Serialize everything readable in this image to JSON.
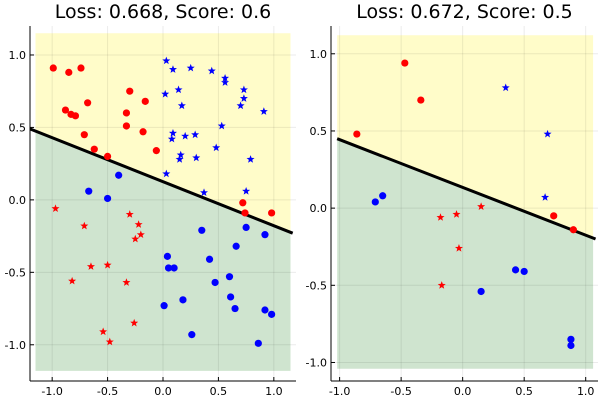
{
  "colors": {
    "region_top": "#fffcc9",
    "region_bottom": "#cfe4cf",
    "series_a": "#ff0000",
    "series_b": "#0000ff",
    "boundary": "#000000"
  },
  "chart_data": [
    {
      "type": "scatter",
      "title": "Loss: 0.668, Score: 0.6",
      "xlim": [
        -1.2,
        1.2
      ],
      "ylim": [
        -1.25,
        1.2
      ],
      "xticks": [
        -1.0,
        -0.5,
        0.0,
        0.5,
        1.0
      ],
      "xtick_labels": [
        "-1.0",
        "-0.5",
        "0.0",
        "0.5",
        "1.0"
      ],
      "yticks": [
        -1.0,
        -0.5,
        0.0,
        0.5,
        1.0
      ],
      "ytick_labels": [
        "-1.0",
        "-0.5",
        "0.0",
        "0.5",
        "1.0"
      ],
      "grid": true,
      "legend": "none",
      "regions": {
        "xrange": [
          -1.15,
          1.15
        ],
        "yrange": [
          -1.18,
          1.15
        ]
      },
      "boundary": {
        "x": [
          -1.2,
          1.17
        ],
        "y": [
          0.49,
          -0.23
        ]
      },
      "series": [
        {
          "marker": "circle",
          "color": "#ff0000",
          "points": [
            [
              -0.99,
              0.91
            ],
            [
              -0.85,
              0.88
            ],
            [
              -0.74,
              0.91
            ],
            [
              -0.88,
              0.62
            ],
            [
              -0.83,
              0.59
            ],
            [
              -0.79,
              0.58
            ],
            [
              -0.68,
              0.67
            ],
            [
              -0.3,
              0.75
            ],
            [
              -0.16,
              0.68
            ],
            [
              -0.33,
              0.6
            ],
            [
              -0.71,
              0.45
            ],
            [
              -0.62,
              0.35
            ],
            [
              -0.5,
              0.3
            ],
            [
              -0.33,
              0.51
            ],
            [
              -0.18,
              0.47
            ],
            [
              -0.06,
              0.34
            ],
            [
              0.72,
              -0.02
            ],
            [
              0.74,
              -0.09
            ],
            [
              0.98,
              -0.09
            ]
          ]
        },
        {
          "marker": "circle",
          "color": "#0000ff",
          "points": [
            [
              -0.67,
              0.06
            ],
            [
              -0.5,
              0.01
            ],
            [
              -0.4,
              0.17
            ],
            [
              0.35,
              -0.21
            ],
            [
              0.04,
              -0.39
            ],
            [
              0.05,
              -0.47
            ],
            [
              0.1,
              -0.47
            ],
            [
              0.01,
              -0.73
            ],
            [
              0.18,
              -0.69
            ],
            [
              0.26,
              -0.93
            ],
            [
              0.42,
              -0.41
            ],
            [
              0.47,
              -0.57
            ],
            [
              0.6,
              -0.53
            ],
            [
              0.66,
              -0.32
            ],
            [
              0.61,
              -0.67
            ],
            [
              0.65,
              -0.75
            ],
            [
              0.75,
              -0.19
            ],
            [
              0.86,
              -0.99
            ],
            [
              0.92,
              -0.24
            ],
            [
              0.92,
              -0.76
            ],
            [
              0.98,
              -0.79
            ]
          ]
        },
        {
          "marker": "star",
          "color": "#0000ff",
          "points": [
            [
              0.03,
              0.96
            ],
            [
              0.09,
              0.9
            ],
            [
              0.25,
              0.91
            ],
            [
              0.44,
              0.89
            ],
            [
              0.56,
              0.84
            ],
            [
              0.56,
              0.81
            ],
            [
              0.73,
              0.76
            ],
            [
              0.02,
              0.73
            ],
            [
              0.14,
              0.76
            ],
            [
              0.17,
              0.65
            ],
            [
              0.73,
              0.7
            ],
            [
              0.7,
              0.65
            ],
            [
              0.53,
              0.51
            ],
            [
              0.91,
              0.61
            ],
            [
              0.09,
              0.46
            ],
            [
              0.2,
              0.44
            ],
            [
              0.29,
              0.45
            ],
            [
              0.08,
              0.42
            ],
            [
              0.48,
              0.36
            ],
            [
              0.16,
              0.31
            ],
            [
              0.15,
              0.28
            ],
            [
              0.3,
              0.29
            ],
            [
              0.79,
              0.28
            ],
            [
              0.03,
              0.18
            ],
            [
              0.37,
              0.05
            ],
            [
              0.75,
              0.06
            ]
          ]
        },
        {
          "marker": "star",
          "color": "#ff0000",
          "points": [
            [
              -0.97,
              -0.06
            ],
            [
              -0.71,
              -0.18
            ],
            [
              -0.3,
              -0.1
            ],
            [
              -0.22,
              -0.17
            ],
            [
              -0.2,
              -0.24
            ],
            [
              -0.25,
              -0.27
            ],
            [
              -0.65,
              -0.46
            ],
            [
              -0.5,
              -0.45
            ],
            [
              -0.33,
              -0.57
            ],
            [
              -0.82,
              -0.56
            ],
            [
              -0.54,
              -0.91
            ],
            [
              -0.48,
              -0.98
            ],
            [
              -0.26,
              -0.85
            ]
          ]
        }
      ]
    },
    {
      "type": "scatter",
      "title": "Loss: 0.672, Score: 0.5",
      "xlim": [
        -1.07,
        1.1
      ],
      "ylim": [
        -1.12,
        1.18
      ],
      "xticks": [
        -1.0,
        -0.5,
        0.0,
        0.5,
        1.0
      ],
      "xtick_labels": [
        "-1.0",
        "-0.5",
        "0.0",
        "0.5",
        "1.0"
      ],
      "yticks": [
        -1.0,
        -0.5,
        0.0,
        0.5,
        1.0
      ],
      "ytick_labels": [
        "-1.0",
        "-0.5",
        "0.0",
        "0.5",
        "1.0"
      ],
      "grid": true,
      "legend": "none",
      "regions": {
        "xrange": [
          -1.02,
          1.06
        ],
        "yrange": [
          -1.04,
          1.12
        ]
      },
      "boundary": {
        "x": [
          -1.02,
          1.08
        ],
        "y": [
          0.45,
          -0.2
        ]
      },
      "series": [
        {
          "marker": "circle",
          "color": "#ff0000",
          "points": [
            [
              -0.86,
              0.48
            ],
            [
              -0.47,
              0.94
            ],
            [
              -0.34,
              0.7
            ],
            [
              0.74,
              -0.05
            ],
            [
              0.9,
              -0.14
            ]
          ]
        },
        {
          "marker": "circle",
          "color": "#0000ff",
          "points": [
            [
              -0.71,
              0.04
            ],
            [
              -0.65,
              0.08
            ],
            [
              0.15,
              -0.54
            ],
            [
              0.43,
              -0.4
            ],
            [
              0.5,
              -0.41
            ],
            [
              0.88,
              -0.85
            ],
            [
              0.88,
              -0.89
            ]
          ]
        },
        {
          "marker": "star",
          "color": "#0000ff",
          "points": [
            [
              0.35,
              0.78
            ],
            [
              0.69,
              0.48
            ],
            [
              0.67,
              0.07
            ]
          ]
        },
        {
          "marker": "star",
          "color": "#ff0000",
          "points": [
            [
              -0.18,
              -0.06
            ],
            [
              -0.05,
              -0.04
            ],
            [
              0.15,
              0.01
            ],
            [
              -0.03,
              -0.26
            ],
            [
              -0.17,
              -0.5
            ]
          ]
        }
      ]
    }
  ]
}
